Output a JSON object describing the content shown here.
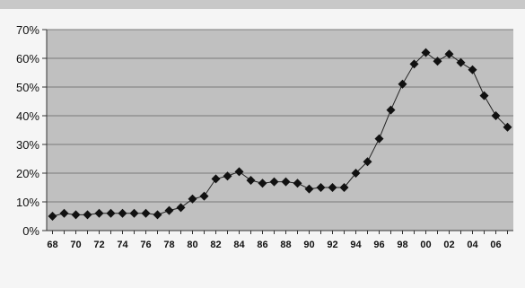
{
  "chart_data": {
    "type": "line",
    "title": "",
    "xlabel": "",
    "ylabel": "",
    "x": [
      1968,
      1969,
      1970,
      1971,
      1972,
      1973,
      1974,
      1975,
      1976,
      1977,
      1978,
      1979,
      1980,
      1981,
      1982,
      1983,
      1984,
      1985,
      1986,
      1987,
      1988,
      1989,
      1990,
      1991,
      1992,
      1993,
      1994,
      1995,
      1996,
      1997,
      1998,
      1999,
      2000,
      2001,
      2002,
      2003,
      2004,
      2005,
      2006,
      2007
    ],
    "series": [
      {
        "values": [
          5,
          6,
          5.5,
          5.5,
          6,
          6,
          6,
          6,
          6,
          5.5,
          7,
          8,
          11,
          12,
          18,
          19,
          20.5,
          17.5,
          16.5,
          17,
          17,
          16.5,
          14.5,
          15,
          15,
          15,
          20,
          24,
          32,
          42,
          51,
          58,
          62,
          59,
          61.5,
          58.5,
          56,
          47,
          40,
          36
        ]
      }
    ],
    "x_tick_labels": [
      "68",
      "70",
      "72",
      "74",
      "76",
      "78",
      "80",
      "82",
      "84",
      "86",
      "88",
      "90",
      "92",
      "94",
      "96",
      "98",
      "00",
      "02",
      "04",
      "06"
    ],
    "x_tick_years": [
      1968,
      1970,
      1972,
      1974,
      1976,
      1978,
      1980,
      1982,
      1984,
      1986,
      1988,
      1990,
      1992,
      1994,
      1996,
      1998,
      2000,
      2002,
      2004,
      2006
    ],
    "y_tick_labels": [
      "0%",
      "10%",
      "20%",
      "30%",
      "40%",
      "50%",
      "60%",
      "70%"
    ],
    "ylim": [
      0,
      70
    ],
    "xlim": [
      1967.5,
      2007.5
    ],
    "grid": true,
    "legend": "none",
    "colors": {
      "plot_background": "#c0c0c0",
      "page_background": "#f5f5f5",
      "top_band": "#c8c8c8",
      "gridline": "#7a7a7a",
      "line": "#222222",
      "marker": "#111111"
    }
  }
}
